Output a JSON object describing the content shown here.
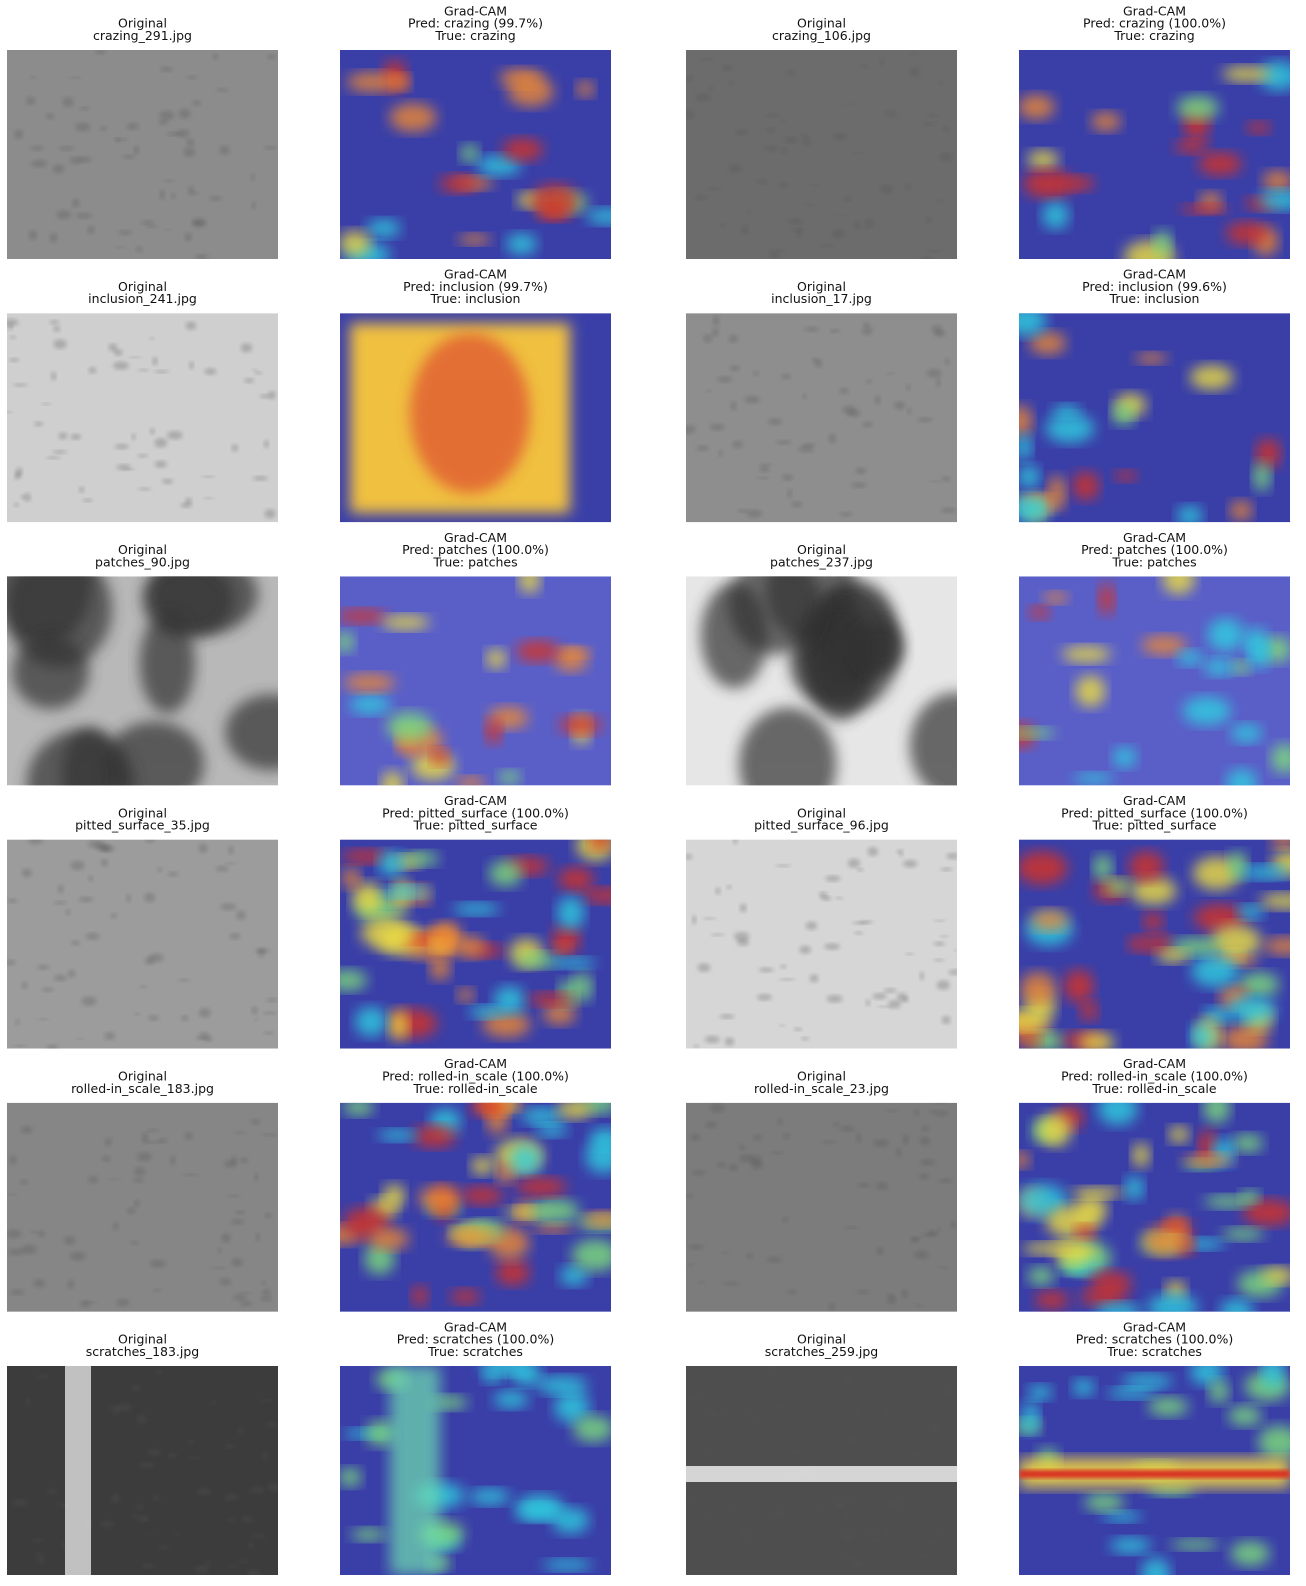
{
  "rows": [
    [
      [
        "Original",
        "crazing_291.jpg"
      ],
      [
        "Grad-CAM",
        "Pred: crazing (99.7%)",
        "True: crazing"
      ],
      [
        "Original",
        "crazing_106.jpg"
      ],
      [
        "Grad-CAM",
        "Pred: crazing (100.0%)",
        "True: crazing"
      ]
    ],
    [
      [
        "Original",
        "inclusion_241.jpg"
      ],
      [
        "Grad-CAM",
        "Pred: inclusion (99.7%)",
        "True: inclusion"
      ],
      [
        "Original",
        "inclusion_17.jpg"
      ],
      [
        "Grad-CAM",
        "Pred: inclusion (99.6%)",
        "True: inclusion"
      ]
    ],
    [
      [
        "Original",
        "patches_90.jpg"
      ],
      [
        "Grad-CAM",
        "Pred: patches (100.0%)",
        "True: patches"
      ],
      [
        "Original",
        "patches_237.jpg"
      ],
      [
        "Grad-CAM",
        "Pred: patches (100.0%)",
        "True: patches"
      ]
    ],
    [
      [
        "Original",
        "pitted_surface_35.jpg"
      ],
      [
        "Grad-CAM",
        "Pred: pitted_surface (100.0%)",
        "True: pitted_surface"
      ],
      [
        "Original",
        "pitted_surface_96.jpg"
      ],
      [
        "Grad-CAM",
        "Pred: pitted_surface (100.0%)",
        "True: pitted_surface"
      ]
    ],
    [
      [
        "Original",
        "rolled-in_scale_183.jpg"
      ],
      [
        "Grad-CAM",
        "Pred: rolled-in_scale (100.0%)",
        "True: rolled-in_scale"
      ],
      [
        "Original",
        "rolled-in_scale_23.jpg"
      ],
      [
        "Grad-CAM",
        "Pred: rolled-in_scale (100.0%)",
        "True: rolled-in_scale"
      ]
    ],
    [
      [
        "Original",
        "scratches_183.jpg"
      ],
      [
        "Grad-CAM",
        "Pred: scratches (100.0%)",
        "True: scratches"
      ],
      [
        "Original",
        "scratches_259.jpg"
      ],
      [
        "Grad-CAM",
        "Pred: scratches (100.0%)",
        "True: scratches"
      ]
    ]
  ]
}
